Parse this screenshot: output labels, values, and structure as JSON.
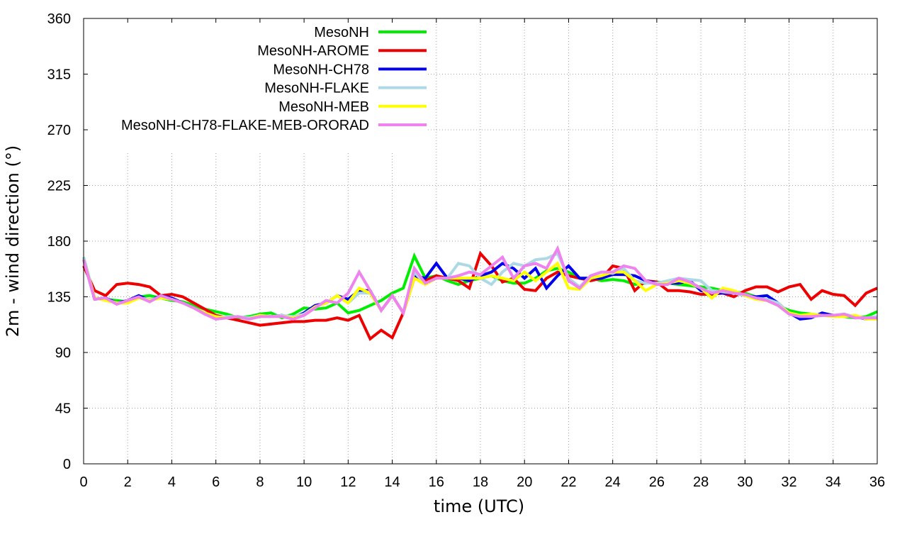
{
  "chart_data": {
    "type": "line",
    "xlabel": "time (UTC)",
    "ylabel": "2m - wind direction (°)",
    "xlim": [
      0,
      36
    ],
    "ylim": [
      0,
      360
    ],
    "xticks": [
      "0",
      "2",
      "4",
      "6",
      "8",
      "10",
      "12",
      "14",
      "16",
      "18",
      "20",
      "22",
      "24",
      "26",
      "28",
      "30",
      "32",
      "34",
      "36"
    ],
    "yticks": [
      "0",
      "45",
      "90",
      "135",
      "180",
      "225",
      "270",
      "315",
      "360"
    ],
    "grid": true,
    "legend_position": "top-left",
    "series": [
      {
        "name": "MesoNH",
        "color": "#00ee00",
        "x": [
          0,
          0.5,
          1,
          1.5,
          2,
          2.5,
          3,
          3.5,
          4,
          4.5,
          5,
          5.5,
          6,
          6.5,
          7,
          7.5,
          8,
          8.5,
          9,
          9.5,
          10,
          10.5,
          11,
          11.5,
          12,
          12.5,
          13,
          13.5,
          14,
          14.5,
          15,
          15.5,
          16,
          16.5,
          17,
          17.5,
          18,
          18.5,
          19,
          19.5,
          20,
          20.5,
          21,
          21.5,
          22,
          22.5,
          23,
          23.5,
          24,
          24.5,
          25,
          25.5,
          26,
          26.5,
          27,
          27.5,
          28,
          28.5,
          29,
          29.5,
          30,
          30.5,
          31,
          31.5,
          32,
          32.5,
          33,
          33.5,
          34,
          34.5,
          35,
          35.5,
          36
        ],
        "values": [
          167,
          134,
          133,
          132,
          131,
          135,
          136,
          134,
          132,
          131,
          128,
          125,
          123,
          121,
          118,
          119,
          121,
          122,
          118,
          121,
          126,
          125,
          126,
          130,
          122,
          124,
          128,
          132,
          138,
          142,
          168,
          150,
          152,
          148,
          145,
          148,
          150,
          152,
          148,
          146,
          146,
          150,
          156,
          158,
          155,
          150,
          150,
          148,
          149,
          148,
          145,
          146,
          147,
          146,
          145,
          144,
          143,
          142,
          140,
          139,
          138,
          135,
          132,
          128,
          124,
          122,
          121,
          120,
          120,
          119,
          118,
          119,
          123
        ]
      },
      {
        "name": "MesoNH-AROME",
        "color": "#ee0000",
        "x": [
          0,
          0.5,
          1,
          1.5,
          2,
          2.5,
          3,
          3.5,
          4,
          4.5,
          5,
          5.5,
          6,
          6.5,
          7,
          7.5,
          8,
          8.5,
          9,
          9.5,
          10,
          10.5,
          11,
          11.5,
          12,
          12.5,
          13,
          13.5,
          14,
          14.5,
          15,
          15.5,
          16,
          16.5,
          17,
          17.5,
          18,
          18.5,
          19,
          19.5,
          20,
          20.5,
          21,
          21.5,
          22,
          22.5,
          23,
          23.5,
          24,
          24.5,
          25,
          25.5,
          26,
          26.5,
          27,
          27.5,
          28,
          28.5,
          29,
          29.5,
          30,
          30.5,
          31,
          31.5,
          32,
          32.5,
          33,
          33.5,
          34,
          34.5,
          35,
          35.5,
          36
        ],
        "values": [
          160,
          140,
          136,
          145,
          146,
          145,
          143,
          136,
          137,
          135,
          130,
          125,
          120,
          118,
          116,
          114,
          112,
          113,
          114,
          115,
          115,
          116,
          116,
          118,
          116,
          120,
          101,
          108,
          102,
          122,
          150,
          148,
          152,
          150,
          148,
          142,
          170,
          160,
          147,
          150,
          141,
          140,
          150,
          155,
          152,
          150,
          148,
          150,
          160,
          158,
          140,
          148,
          147,
          140,
          140,
          139,
          137,
          137,
          138,
          135,
          140,
          143,
          143,
          139,
          143,
          145,
          133,
          140,
          137,
          136,
          128,
          138,
          142
        ]
      },
      {
        "name": "MesoNH-CH78",
        "color": "#0000ee",
        "x": [
          0,
          0.5,
          1,
          1.5,
          2,
          2.5,
          3,
          3.5,
          4,
          4.5,
          5,
          5.5,
          6,
          6.5,
          7,
          7.5,
          8,
          8.5,
          9,
          9.5,
          10,
          10.5,
          11,
          11.5,
          12,
          12.5,
          13,
          13.5,
          14,
          14.5,
          15,
          15.5,
          16,
          16.5,
          17,
          17.5,
          18,
          18.5,
          19,
          19.5,
          20,
          20.5,
          21,
          21.5,
          22,
          22.5,
          23,
          23.5,
          24,
          24.5,
          25,
          25.5,
          26,
          26.5,
          27,
          27.5,
          28,
          28.5,
          29,
          29.5,
          30,
          30.5,
          31,
          31.5,
          32,
          32.5,
          33,
          33.5,
          34,
          34.5,
          35,
          35.5,
          36
        ],
        "values": [
          165,
          133,
          134,
          130,
          132,
          136,
          132,
          136,
          134,
          130,
          126,
          122,
          119,
          118,
          119,
          117,
          120,
          119,
          120,
          118,
          122,
          128,
          130,
          136,
          133,
          140,
          140,
          124,
          136,
          122,
          152,
          150,
          162,
          150,
          150,
          148,
          152,
          155,
          162,
          158,
          150,
          158,
          142,
          152,
          160,
          150,
          150,
          150,
          153,
          153,
          152,
          148,
          146,
          146,
          146,
          148,
          140,
          138,
          138,
          138,
          136,
          135,
          136,
          130,
          122,
          117,
          118,
          122,
          120,
          120,
          119,
          117,
          118
        ]
      },
      {
        "name": "MesoNH-FLAKE",
        "color": "#add8e6",
        "x": [
          0,
          0.5,
          1,
          1.5,
          2,
          2.5,
          3,
          3.5,
          4,
          4.5,
          5,
          5.5,
          6,
          6.5,
          7,
          7.5,
          8,
          8.5,
          9,
          9.5,
          10,
          10.5,
          11,
          11.5,
          12,
          12.5,
          13,
          13.5,
          14,
          14.5,
          15,
          15.5,
          16,
          16.5,
          17,
          17.5,
          18,
          18.5,
          19,
          19.5,
          20,
          20.5,
          21,
          21.5,
          22,
          22.5,
          23,
          23.5,
          24,
          24.5,
          25,
          25.5,
          26,
          26.5,
          27,
          27.5,
          28,
          28.5,
          29,
          29.5,
          30,
          30.5,
          31,
          31.5,
          32,
          32.5,
          33,
          33.5,
          34,
          34.5,
          35,
          35.5,
          36
        ],
        "values": [
          167,
          134,
          133,
          130,
          131,
          134,
          133,
          134,
          133,
          130,
          126,
          121,
          118,
          119,
          119,
          118,
          120,
          119,
          120,
          119,
          121,
          127,
          130,
          136,
          130,
          138,
          138,
          124,
          136,
          122,
          155,
          145,
          150,
          150,
          162,
          160,
          150,
          145,
          155,
          162,
          160,
          165,
          166,
          170,
          150,
          143,
          152,
          155,
          154,
          158,
          148,
          146,
          146,
          148,
          150,
          149,
          148,
          140,
          139,
          138,
          136,
          134,
          133,
          130,
          122,
          120,
          119,
          120,
          120,
          121,
          119,
          118,
          119
        ]
      },
      {
        "name": "MesoNH-MEB",
        "color": "#ffff00",
        "x": [
          0,
          0.5,
          1,
          1.5,
          2,
          2.5,
          3,
          3.5,
          4,
          4.5,
          5,
          5.5,
          6,
          6.5,
          7,
          7.5,
          8,
          8.5,
          9,
          9.5,
          10,
          10.5,
          11,
          11.5,
          12,
          12.5,
          13,
          13.5,
          14,
          14.5,
          15,
          15.5,
          16,
          16.5,
          17,
          17.5,
          18,
          18.5,
          19,
          19.5,
          20,
          20.5,
          21,
          21.5,
          22,
          22.5,
          23,
          23.5,
          24,
          24.5,
          25,
          25.5,
          26,
          26.5,
          27,
          27.5,
          28,
          28.5,
          29,
          29.5,
          30,
          30.5,
          31,
          31.5,
          32,
          32.5,
          33,
          33.5,
          34,
          34.5,
          35,
          35.5,
          36
        ],
        "values": [
          165,
          134,
          132,
          130,
          130,
          134,
          132,
          134,
          133,
          130,
          126,
          122,
          119,
          118,
          119,
          117,
          120,
          119,
          119,
          118,
          120,
          127,
          130,
          136,
          130,
          142,
          138,
          124,
          136,
          122,
          150,
          145,
          150,
          150,
          150,
          150,
          150,
          152,
          150,
          148,
          155,
          148,
          155,
          162,
          142,
          141,
          150,
          152,
          155,
          155,
          148,
          140,
          145,
          146,
          148,
          146,
          142,
          134,
          142,
          140,
          136,
          133,
          132,
          128,
          122,
          120,
          121,
          120,
          119,
          119,
          120,
          117,
          117
        ]
      },
      {
        "name": "MesoNH-CH78-FLAKE-MEB-ORORAD",
        "color": "#ee82ee",
        "x": [
          0,
          0.5,
          1,
          1.5,
          2,
          2.5,
          3,
          3.5,
          4,
          4.5,
          5,
          5.5,
          6,
          6.5,
          7,
          7.5,
          8,
          8.5,
          9,
          9.5,
          10,
          10.5,
          11,
          11.5,
          12,
          12.5,
          13,
          13.5,
          14,
          14.5,
          15,
          15.5,
          16,
          16.5,
          17,
          17.5,
          18,
          18.5,
          19,
          19.5,
          20,
          20.5,
          21,
          21.5,
          22,
          22.5,
          23,
          23.5,
          24,
          24.5,
          25,
          25.5,
          26,
          26.5,
          27,
          27.5,
          28,
          28.5,
          29,
          29.5,
          30,
          30.5,
          31,
          31.5,
          32,
          32.5,
          33,
          33.5,
          34,
          34.5,
          35,
          35.5,
          36
        ],
        "values": [
          165,
          133,
          134,
          129,
          132,
          135,
          131,
          136,
          133,
          130,
          126,
          121,
          117,
          118,
          119,
          117,
          119,
          119,
          119,
          117,
          120,
          126,
          132,
          130,
          138,
          155,
          140,
          124,
          136,
          122,
          158,
          146,
          150,
          150,
          152,
          155,
          153,
          160,
          167,
          150,
          160,
          162,
          158,
          174,
          148,
          142,
          152,
          155,
          155,
          160,
          158,
          148,
          145,
          145,
          150,
          147,
          142,
          138,
          140,
          138,
          137,
          134,
          132,
          128,
          121,
          119,
          119,
          120,
          120,
          121,
          118,
          118,
          118
        ]
      }
    ]
  }
}
